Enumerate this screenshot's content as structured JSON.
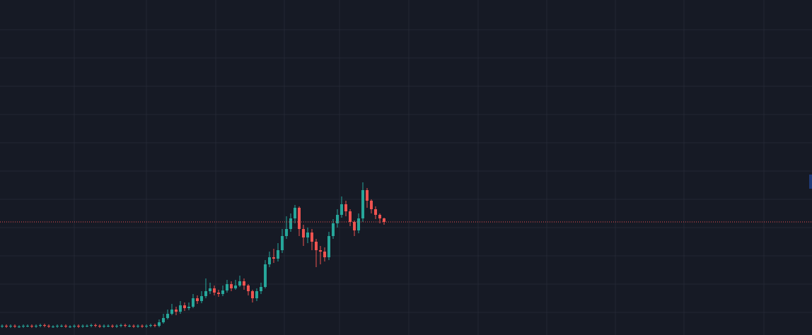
{
  "chart_data": {
    "type": "candlestick",
    "open": [
      12,
      13,
      12,
      13,
      12,
      12,
      13,
      13,
      12,
      13,
      14,
      13,
      12,
      12,
      13,
      13,
      12,
      12,
      13,
      12,
      13,
      13,
      14,
      13,
      12,
      13,
      13,
      12,
      13,
      14,
      13,
      13,
      12,
      13,
      12,
      13,
      14,
      13,
      18,
      24,
      30,
      36,
      33,
      42,
      38,
      40,
      52,
      48,
      55,
      62,
      66,
      60,
      58,
      63,
      72,
      66,
      70,
      76,
      70,
      62,
      52,
      62,
      68,
      100,
      110,
      108,
      120,
      140,
      150,
      165,
      180,
      150,
      138,
      145,
      132,
      120,
      118,
      110,
      140,
      158,
      170,
      185,
      175,
      160,
      148,
      165,
      205,
      190,
      178,
      170,
      165
    ],
    "high": [
      15,
      15,
      15,
      15,
      14,
      15,
      15,
      15,
      15,
      16,
      16,
      15,
      14,
      15,
      15,
      15,
      14,
      15,
      15,
      15,
      15,
      16,
      16,
      15,
      15,
      15,
      15,
      15,
      16,
      16,
      15,
      15,
      15,
      15,
      15,
      16,
      16,
      22,
      30,
      36,
      44,
      40,
      48,
      46,
      46,
      58,
      56,
      62,
      80,
      74,
      70,
      64,
      70,
      78,
      76,
      78,
      84,
      80,
      72,
      64,
      66,
      74,
      106,
      118,
      122,
      130,
      150,
      168,
      172,
      184,
      182,
      156,
      152,
      150,
      136,
      126,
      124,
      146,
      164,
      178,
      196,
      190,
      178,
      162,
      172,
      216,
      208,
      192,
      182,
      172,
      166
    ],
    "low": [
      10,
      10,
      10,
      10,
      10,
      10,
      11,
      10,
      10,
      11,
      11,
      10,
      10,
      10,
      11,
      10,
      10,
      10,
      10,
      10,
      11,
      11,
      11,
      10,
      10,
      11,
      10,
      10,
      11,
      11,
      11,
      10,
      10,
      10,
      10,
      11,
      11,
      11,
      16,
      22,
      28,
      28,
      30,
      34,
      35,
      38,
      44,
      45,
      52,
      58,
      56,
      54,
      55,
      60,
      62,
      64,
      68,
      64,
      56,
      46,
      48,
      58,
      66,
      96,
      102,
      104,
      116,
      136,
      146,
      158,
      140,
      126,
      130,
      120,
      96,
      100,
      104,
      106,
      136,
      152,
      166,
      168,
      154,
      140,
      144,
      160,
      180,
      172,
      164,
      158,
      156
    ],
    "close": [
      13,
      12,
      13,
      12,
      12,
      13,
      13,
      12,
      13,
      14,
      13,
      12,
      12,
      13,
      13,
      12,
      12,
      13,
      12,
      13,
      13,
      14,
      13,
      12,
      13,
      13,
      12,
      13,
      14,
      13,
      13,
      12,
      13,
      12,
      13,
      14,
      13,
      18,
      24,
      30,
      36,
      33,
      42,
      38,
      40,
      52,
      48,
      55,
      62,
      66,
      60,
      58,
      63,
      72,
      66,
      70,
      76,
      70,
      62,
      52,
      62,
      68,
      100,
      110,
      108,
      120,
      140,
      150,
      165,
      180,
      150,
      138,
      145,
      132,
      120,
      118,
      110,
      140,
      158,
      170,
      185,
      175,
      160,
      148,
      165,
      205,
      190,
      178,
      170,
      165,
      160
    ],
    "ylim": [
      0,
      474
    ],
    "up_color": "#26a69a",
    "down_color": "#ef5350",
    "grid": true
  }
}
